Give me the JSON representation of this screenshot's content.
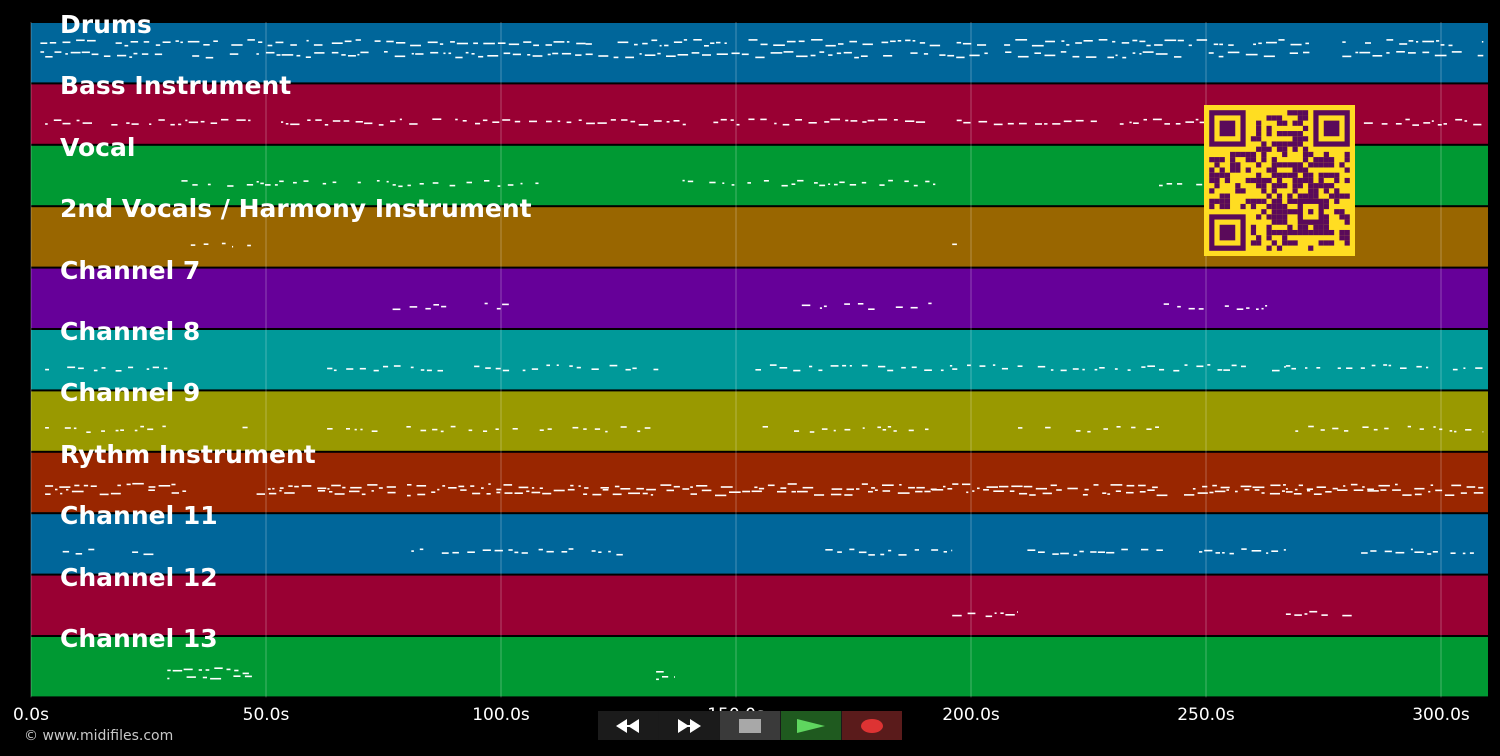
{
  "window": {
    "copyright": "© www.midifiles.com"
  },
  "timeline": {
    "max_seconds": 310,
    "ticks": [
      {
        "value": 0,
        "label": "0.0s"
      },
      {
        "value": 50,
        "label": "50.0s"
      },
      {
        "value": 100,
        "label": "100.0s"
      },
      {
        "value": 150,
        "label": "150.0s"
      },
      {
        "value": 200,
        "label": "200.0s"
      },
      {
        "value": 250,
        "label": "250.0s"
      },
      {
        "value": 300,
        "label": "300.0s"
      }
    ]
  },
  "tracks": [
    {
      "name": "Drums",
      "color": "#00669a",
      "segments": [
        [
          2,
          63
        ],
        [
          64,
          118
        ],
        [
          118,
          247
        ],
        [
          248,
          272
        ],
        [
          279,
          309
        ]
      ],
      "density": 1.0,
      "lines": 2
    },
    {
      "name": "Bass Instrument",
      "color": "#990033",
      "segments": [
        [
          3,
          309
        ]
      ],
      "density": 0.75,
      "lines": 1
    },
    {
      "name": "Vocal",
      "color": "#009933",
      "segments": [
        [
          32,
          48
        ],
        [
          48,
          108
        ],
        [
          136,
          196
        ],
        [
          240,
          252
        ]
      ],
      "density": 0.45,
      "lines": 1
    },
    {
      "name": "2nd Vocals / Harmony Instrument",
      "color": "#996600",
      "segments": [
        [
          34,
          43
        ],
        [
          46,
          47
        ],
        [
          196,
          197
        ]
      ],
      "density": 0.4,
      "lines": 1
    },
    {
      "name": "Channel 7",
      "color": "#660099",
      "segments": [
        [
          75,
          89
        ],
        [
          94,
          104
        ],
        [
          164,
          180
        ],
        [
          184,
          193
        ],
        [
          241,
          250
        ],
        [
          254,
          263
        ]
      ],
      "density": 0.7,
      "lines": 1
    },
    {
      "name": "Channel 8",
      "color": "#009999",
      "segments": [
        [
          3,
          30
        ],
        [
          45,
          47
        ],
        [
          63,
          134
        ],
        [
          152,
          196
        ],
        [
          196,
          267
        ],
        [
          267,
          309
        ]
      ],
      "density": 0.6,
      "lines": 1
    },
    {
      "name": "Channel 9",
      "color": "#999900",
      "segments": [
        [
          3,
          30
        ],
        [
          45,
          47
        ],
        [
          63,
          134
        ],
        [
          152,
          192
        ],
        [
          210,
          240
        ],
        [
          269,
          309
        ]
      ],
      "density": 0.45,
      "lines": 1
    },
    {
      "name": "Rythm Instrument",
      "color": "#992600",
      "segments": [
        [
          3,
          33
        ],
        [
          48,
          78
        ],
        [
          80,
          196
        ],
        [
          196,
          267
        ],
        [
          267,
          309
        ]
      ],
      "density": 1.0,
      "lines": 2
    },
    {
      "name": "Channel 11",
      "color": "#00669a",
      "segments": [
        [
          4,
          27
        ],
        [
          80,
          106
        ],
        [
          108,
          132
        ],
        [
          169,
          196
        ],
        [
          212,
          267
        ],
        [
          283,
          307
        ]
      ],
      "density": 0.8,
      "lines": 1
    },
    {
      "name": "Channel 12",
      "color": "#990033",
      "segments": [
        [
          196,
          210
        ],
        [
          267,
          281
        ]
      ],
      "density": 0.8,
      "lines": 1
    },
    {
      "name": "Channel 13",
      "color": "#009933",
      "segments": [
        [
          29,
          47
        ],
        [
          133,
          137
        ]
      ],
      "density": 1.0,
      "lines": 2
    }
  ],
  "transport": [
    {
      "name": "rewind-button",
      "icon": "rewind-icon"
    },
    {
      "name": "fast-forward-button",
      "icon": "fast-forward-icon"
    },
    {
      "name": "stop-button",
      "icon": "stop-icon"
    },
    {
      "name": "play-button",
      "icon": "play-icon"
    },
    {
      "name": "record-button",
      "icon": "record-icon"
    }
  ],
  "qr": {
    "icon": "qr-code-icon",
    "bg": "#ffdd22",
    "fg": "#5a0a5a"
  }
}
